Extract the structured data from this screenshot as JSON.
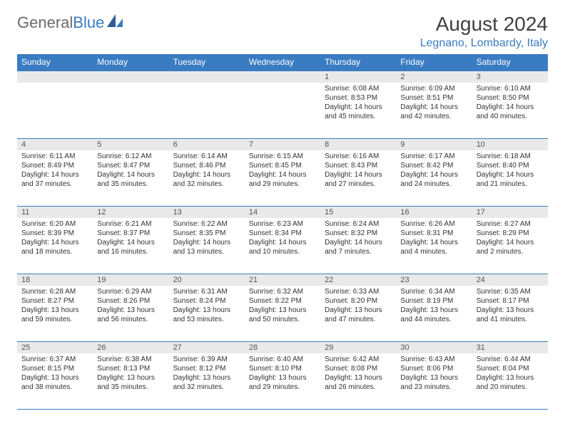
{
  "logo": {
    "text1": "General",
    "text2": "Blue"
  },
  "header": {
    "month_title": "August 2024",
    "location": "Legnano, Lombardy, Italy"
  },
  "colors": {
    "accent": "#3a7cc2",
    "daynum_bg": "#e9e9e9",
    "text": "#333333",
    "logo_gray": "#6a6a6a"
  },
  "calendar": {
    "day_headers": [
      "Sunday",
      "Monday",
      "Tuesday",
      "Wednesday",
      "Thursday",
      "Friday",
      "Saturday"
    ],
    "weeks": [
      [
        null,
        null,
        null,
        null,
        {
          "n": "1",
          "sr": "Sunrise: 6:08 AM",
          "ss": "Sunset: 8:53 PM",
          "d1": "Daylight: 14 hours",
          "d2": "and 45 minutes."
        },
        {
          "n": "2",
          "sr": "Sunrise: 6:09 AM",
          "ss": "Sunset: 8:51 PM",
          "d1": "Daylight: 14 hours",
          "d2": "and 42 minutes."
        },
        {
          "n": "3",
          "sr": "Sunrise: 6:10 AM",
          "ss": "Sunset: 8:50 PM",
          "d1": "Daylight: 14 hours",
          "d2": "and 40 minutes."
        }
      ],
      [
        {
          "n": "4",
          "sr": "Sunrise: 6:11 AM",
          "ss": "Sunset: 8:49 PM",
          "d1": "Daylight: 14 hours",
          "d2": "and 37 minutes."
        },
        {
          "n": "5",
          "sr": "Sunrise: 6:12 AM",
          "ss": "Sunset: 8:47 PM",
          "d1": "Daylight: 14 hours",
          "d2": "and 35 minutes."
        },
        {
          "n": "6",
          "sr": "Sunrise: 6:14 AM",
          "ss": "Sunset: 8:46 PM",
          "d1": "Daylight: 14 hours",
          "d2": "and 32 minutes."
        },
        {
          "n": "7",
          "sr": "Sunrise: 6:15 AM",
          "ss": "Sunset: 8:45 PM",
          "d1": "Daylight: 14 hours",
          "d2": "and 29 minutes."
        },
        {
          "n": "8",
          "sr": "Sunrise: 6:16 AM",
          "ss": "Sunset: 8:43 PM",
          "d1": "Daylight: 14 hours",
          "d2": "and 27 minutes."
        },
        {
          "n": "9",
          "sr": "Sunrise: 6:17 AM",
          "ss": "Sunset: 8:42 PM",
          "d1": "Daylight: 14 hours",
          "d2": "and 24 minutes."
        },
        {
          "n": "10",
          "sr": "Sunrise: 6:18 AM",
          "ss": "Sunset: 8:40 PM",
          "d1": "Daylight: 14 hours",
          "d2": "and 21 minutes."
        }
      ],
      [
        {
          "n": "11",
          "sr": "Sunrise: 6:20 AM",
          "ss": "Sunset: 8:39 PM",
          "d1": "Daylight: 14 hours",
          "d2": "and 18 minutes."
        },
        {
          "n": "12",
          "sr": "Sunrise: 6:21 AM",
          "ss": "Sunset: 8:37 PM",
          "d1": "Daylight: 14 hours",
          "d2": "and 16 minutes."
        },
        {
          "n": "13",
          "sr": "Sunrise: 6:22 AM",
          "ss": "Sunset: 8:35 PM",
          "d1": "Daylight: 14 hours",
          "d2": "and 13 minutes."
        },
        {
          "n": "14",
          "sr": "Sunrise: 6:23 AM",
          "ss": "Sunset: 8:34 PM",
          "d1": "Daylight: 14 hours",
          "d2": "and 10 minutes."
        },
        {
          "n": "15",
          "sr": "Sunrise: 6:24 AM",
          "ss": "Sunset: 8:32 PM",
          "d1": "Daylight: 14 hours",
          "d2": "and 7 minutes."
        },
        {
          "n": "16",
          "sr": "Sunrise: 6:26 AM",
          "ss": "Sunset: 8:31 PM",
          "d1": "Daylight: 14 hours",
          "d2": "and 4 minutes."
        },
        {
          "n": "17",
          "sr": "Sunrise: 6:27 AM",
          "ss": "Sunset: 8:29 PM",
          "d1": "Daylight: 14 hours",
          "d2": "and 2 minutes."
        }
      ],
      [
        {
          "n": "18",
          "sr": "Sunrise: 6:28 AM",
          "ss": "Sunset: 8:27 PM",
          "d1": "Daylight: 13 hours",
          "d2": "and 59 minutes."
        },
        {
          "n": "19",
          "sr": "Sunrise: 6:29 AM",
          "ss": "Sunset: 8:26 PM",
          "d1": "Daylight: 13 hours",
          "d2": "and 56 minutes."
        },
        {
          "n": "20",
          "sr": "Sunrise: 6:31 AM",
          "ss": "Sunset: 8:24 PM",
          "d1": "Daylight: 13 hours",
          "d2": "and 53 minutes."
        },
        {
          "n": "21",
          "sr": "Sunrise: 6:32 AM",
          "ss": "Sunset: 8:22 PM",
          "d1": "Daylight: 13 hours",
          "d2": "and 50 minutes."
        },
        {
          "n": "22",
          "sr": "Sunrise: 6:33 AM",
          "ss": "Sunset: 8:20 PM",
          "d1": "Daylight: 13 hours",
          "d2": "and 47 minutes."
        },
        {
          "n": "23",
          "sr": "Sunrise: 6:34 AM",
          "ss": "Sunset: 8:19 PM",
          "d1": "Daylight: 13 hours",
          "d2": "and 44 minutes."
        },
        {
          "n": "24",
          "sr": "Sunrise: 6:35 AM",
          "ss": "Sunset: 8:17 PM",
          "d1": "Daylight: 13 hours",
          "d2": "and 41 minutes."
        }
      ],
      [
        {
          "n": "25",
          "sr": "Sunrise: 6:37 AM",
          "ss": "Sunset: 8:15 PM",
          "d1": "Daylight: 13 hours",
          "d2": "and 38 minutes."
        },
        {
          "n": "26",
          "sr": "Sunrise: 6:38 AM",
          "ss": "Sunset: 8:13 PM",
          "d1": "Daylight: 13 hours",
          "d2": "and 35 minutes."
        },
        {
          "n": "27",
          "sr": "Sunrise: 6:39 AM",
          "ss": "Sunset: 8:12 PM",
          "d1": "Daylight: 13 hours",
          "d2": "and 32 minutes."
        },
        {
          "n": "28",
          "sr": "Sunrise: 6:40 AM",
          "ss": "Sunset: 8:10 PM",
          "d1": "Daylight: 13 hours",
          "d2": "and 29 minutes."
        },
        {
          "n": "29",
          "sr": "Sunrise: 6:42 AM",
          "ss": "Sunset: 8:08 PM",
          "d1": "Daylight: 13 hours",
          "d2": "and 26 minutes."
        },
        {
          "n": "30",
          "sr": "Sunrise: 6:43 AM",
          "ss": "Sunset: 8:06 PM",
          "d1": "Daylight: 13 hours",
          "d2": "and 23 minutes."
        },
        {
          "n": "31",
          "sr": "Sunrise: 6:44 AM",
          "ss": "Sunset: 8:04 PM",
          "d1": "Daylight: 13 hours",
          "d2": "and 20 minutes."
        }
      ]
    ]
  }
}
